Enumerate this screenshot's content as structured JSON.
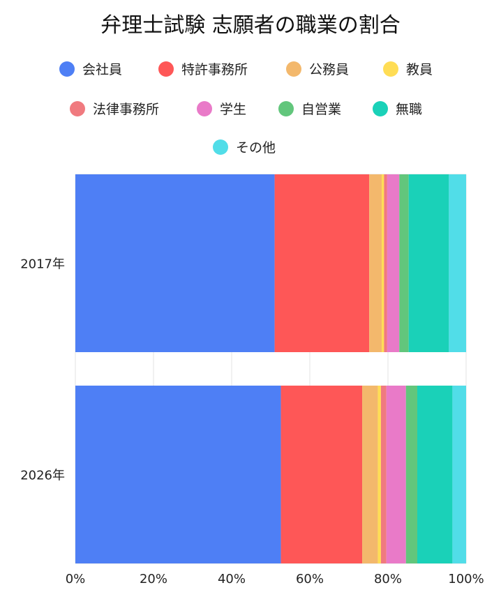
{
  "chart_data": {
    "type": "bar",
    "orientation": "horizontal",
    "stacked": true,
    "normalized": true,
    "title": "弁理士試験 志願者の職業の割合",
    "legend_position": "top",
    "categories": [
      "2017年",
      "2026年"
    ],
    "x_ticks": [
      "0%",
      "20%",
      "40%",
      "60%",
      "80%",
      "100%"
    ],
    "xlim": [
      0,
      100
    ],
    "grid": true,
    "series": [
      {
        "name": "会社員",
        "color": "#4e7ff5",
        "values": [
          51.0,
          52.6
        ]
      },
      {
        "name": "特許事務所",
        "color": "#fe5757",
        "values": [
          24.2,
          20.8
        ]
      },
      {
        "name": "公務員",
        "color": "#f3b86c",
        "values": [
          3.2,
          4.0
        ]
      },
      {
        "name": "教員",
        "color": "#ffdd55",
        "values": [
          0.6,
          0.8
        ]
      },
      {
        "name": "法律事務所",
        "color": "#f07a7f",
        "values": [
          0.8,
          1.4
        ]
      },
      {
        "name": "学生",
        "color": "#e97ac8",
        "values": [
          3.1,
          5.0
        ]
      },
      {
        "name": "自営業",
        "color": "#62c67c",
        "values": [
          2.4,
          2.9
        ]
      },
      {
        "name": "無職",
        "color": "#1ad1b8",
        "values": [
          10.3,
          9.0
        ]
      },
      {
        "name": "その他",
        "color": "#51dde8",
        "values": [
          4.4,
          3.5
        ]
      }
    ]
  }
}
